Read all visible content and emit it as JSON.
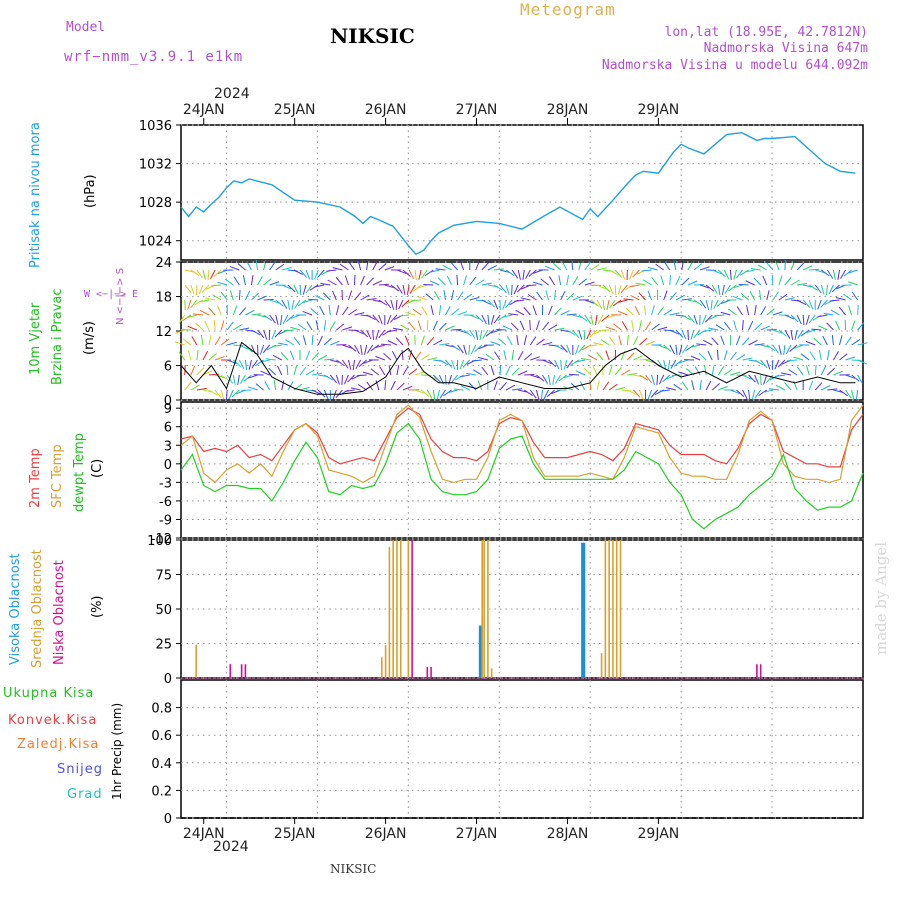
{
  "header": {
    "model_label": "Model",
    "model_name": "wrf−nmm_v3.9.1  e1km",
    "station": "NIKSIC",
    "meteogram": "Meteogram",
    "lonlat": "lon,lat (18.95E, 42.7812N)",
    "altitude": "Nadmorska Visina 647m",
    "model_altitude": "Nadmorska Visina u modelu 644.092m",
    "year_top": "2024",
    "year_bottom": "2024",
    "footer_station": "NIKSIC",
    "watermark": "made by Angel"
  },
  "colors": {
    "pressure": "#1fa0e0",
    "temp2m": "#e84040",
    "sfc": "#d8a030",
    "dewpt": "#20d020",
    "high_cloud": "#1a8fe0",
    "mid_cloud": "#d8a030",
    "low_cloud": "#d01090",
    "purple": "#b04fd0"
  },
  "panel_labels": {
    "pressure": [
      "Pritisak na nivou mora",
      "(hPa)"
    ],
    "wind": [
      "10m Vjetar",
      "Brzina i Pravac",
      "(m/s)"
    ],
    "compass_ns": "N <−|−> S",
    "compass_ew": "W  <−|−>  E",
    "temp": [
      "2m Temp",
      "SFC Temp",
      "dewpt Temp",
      "(C)"
    ],
    "cloud": [
      "Visoka Oblacnost",
      "Srednja Oblacnost",
      "Niska Oblacnost",
      "(%)"
    ],
    "precip_unit": "1hr Precip (mm)",
    "precip_legend": [
      "Ukupna Kisa",
      "Konvek.Kisa",
      "Zaledj.Kisa",
      "Snijeg",
      "Grad"
    ],
    "precip_legend_colors": [
      "#20d020",
      "#e84040",
      "#f08030",
      "#5050e0",
      "#20c0c0"
    ]
  },
  "chart_data": [
    {
      "type": "line",
      "title": "",
      "ylabel": "Pritisak na nivou mora (hPa)",
      "x_ticks": [
        "24JAN",
        "25JAN",
        "26JAN",
        "27JAN",
        "28JAN",
        "29JAN"
      ],
      "ylim": [
        1022,
        1036
      ],
      "yticks": [
        1024,
        1028,
        1032,
        1036
      ],
      "grid": true,
      "series": [
        {
          "name": "Pritisak na nivou mora",
          "x": [
            0,
            2,
            4,
            6,
            8,
            10,
            12,
            14,
            16,
            18,
            20,
            24,
            30,
            36,
            42,
            46,
            48,
            50,
            52,
            56,
            60,
            62,
            64,
            66,
            68,
            72,
            78,
            84,
            90,
            96,
            100,
            106,
            108,
            110,
            114,
            118,
            120,
            122,
            126,
            130,
            132,
            134,
            138,
            144,
            148,
            152,
            154,
            156,
            162,
            166,
            170,
            174,
            178
          ],
          "y": [
            1027.5,
            1026.5,
            1027.5,
            1027.0,
            1027.8,
            1028.5,
            1029.5,
            1030.2,
            1030.0,
            1030.4,
            1030.2,
            1029.8,
            1028.2,
            1028.0,
            1027.5,
            1026.5,
            1025.8,
            1026.5,
            1026.2,
            1025.5,
            1023.5,
            1022.6,
            1023.0,
            1024.0,
            1024.8,
            1025.6,
            1026.0,
            1025.8,
            1025.2,
            1026.6,
            1027.5,
            1026.2,
            1027.3,
            1026.5,
            1028.2,
            1030.0,
            1030.8,
            1031.2,
            1031.0,
            1033.2,
            1034.0,
            1033.6,
            1033.0,
            1035.0,
            1035.2,
            1034.4,
            1034.6,
            1034.6,
            1034.8,
            1033.4,
            1032.0,
            1031.2,
            1031.0
          ]
        }
      ]
    },
    {
      "type": "line",
      "title": "",
      "ylabel": "10m Vjetar Brzina i Pravac (m/s)",
      "x_ticks": [
        "24JAN",
        "25JAN",
        "26JAN",
        "27JAN",
        "28JAN",
        "29JAN"
      ],
      "ylim": [
        0,
        24
      ],
      "yticks": [
        0,
        6,
        12,
        18,
        24
      ],
      "grid": true,
      "series": [
        {
          "name": "10m Vjetar",
          "x": [
            0,
            4,
            8,
            12,
            16,
            20,
            24,
            30,
            36,
            42,
            48,
            54,
            58,
            60,
            64,
            68,
            72,
            78,
            84,
            90,
            96,
            102,
            108,
            112,
            116,
            120,
            126,
            132,
            138,
            144,
            150,
            156,
            162,
            168,
            174,
            178
          ],
          "y": [
            6,
            3,
            6,
            2,
            10,
            8,
            4,
            2,
            1,
            1,
            1.5,
            4,
            8,
            9,
            5,
            3,
            3,
            2,
            4,
            3,
            2,
            2,
            3,
            6,
            8,
            9,
            6,
            4,
            5,
            3,
            5,
            4,
            3,
            4,
            3,
            3
          ]
        }
      ]
    },
    {
      "type": "line",
      "title": "",
      "ylabel": "(C)",
      "x_ticks": [
        "24JAN",
        "25JAN",
        "26JAN",
        "27JAN",
        "28JAN",
        "29JAN"
      ],
      "ylim": [
        -12,
        10
      ],
      "yticks": [
        -12,
        -9,
        -6,
        -3,
        0,
        3,
        6,
        9
      ],
      "grid": true,
      "series": [
        {
          "name": "2m Temp",
          "x": [
            0,
            3,
            6,
            9,
            12,
            15,
            18,
            21,
            24,
            27,
            30,
            33,
            36,
            39,
            42,
            45,
            48,
            51,
            54,
            57,
            60,
            63,
            66,
            69,
            72,
            75,
            78,
            81,
            84,
            87,
            90,
            93,
            96,
            99,
            102,
            105,
            108,
            111,
            114,
            117,
            120,
            123,
            126,
            129,
            132,
            135,
            138,
            141,
            144,
            147,
            150,
            153,
            156,
            159,
            162,
            165,
            168,
            171,
            174,
            177,
            180
          ],
          "y": [
            4,
            4.5,
            2,
            2.5,
            2,
            3,
            1,
            1.5,
            0.5,
            3,
            5.5,
            6.5,
            5,
            1,
            0,
            0.5,
            1,
            0.5,
            4,
            7.5,
            9,
            8,
            4,
            2,
            1,
            1,
            0.5,
            2,
            6.5,
            7.5,
            7,
            3.5,
            1,
            1,
            1,
            1.5,
            2,
            1.5,
            0.5,
            2.5,
            6.5,
            6,
            5.5,
            3,
            1.5,
            1.5,
            1.5,
            0.5,
            0,
            2.5,
            6.5,
            8,
            7,
            2,
            1,
            0,
            0,
            -0.5,
            -0.5,
            5.5,
            8
          ]
        },
        {
          "name": "SFC Temp",
          "x": [
            0,
            3,
            6,
            9,
            12,
            15,
            18,
            21,
            24,
            27,
            30,
            33,
            36,
            39,
            42,
            45,
            48,
            51,
            54,
            57,
            60,
            63,
            66,
            69,
            72,
            75,
            78,
            81,
            84,
            87,
            90,
            93,
            96,
            99,
            102,
            105,
            108,
            111,
            114,
            117,
            120,
            123,
            126,
            129,
            132,
            135,
            138,
            141,
            144,
            147,
            150,
            153,
            156,
            159,
            162,
            165,
            168,
            171,
            174,
            177,
            180
          ],
          "y": [
            3,
            4.5,
            -1.5,
            -3,
            -1,
            0,
            -1.5,
            0,
            -2,
            2,
            5.5,
            6.5,
            4.5,
            -1,
            -1.5,
            -2,
            -3,
            -2,
            3,
            8,
            9.5,
            7.5,
            2,
            -2.5,
            -3,
            -2.5,
            -2.5,
            1,
            7,
            8,
            7,
            1,
            -2,
            -2,
            -2,
            -2,
            -1.5,
            -2,
            -2.5,
            1,
            6,
            5.5,
            5,
            1,
            -1.5,
            -2,
            -2,
            -2.5,
            -2.5,
            1.5,
            7,
            8.5,
            7,
            0,
            -2,
            -2.5,
            -2.5,
            -3,
            -2.5,
            7,
            9.5
          ]
        },
        {
          "name": "dewpt Temp",
          "x": [
            0,
            3,
            6,
            9,
            12,
            15,
            18,
            21,
            24,
            27,
            30,
            33,
            36,
            39,
            42,
            45,
            48,
            51,
            54,
            57,
            60,
            63,
            66,
            69,
            72,
            75,
            78,
            81,
            84,
            87,
            90,
            93,
            96,
            99,
            102,
            105,
            108,
            111,
            114,
            117,
            120,
            123,
            126,
            129,
            132,
            135,
            138,
            141,
            144,
            147,
            150,
            153,
            156,
            159,
            162,
            165,
            168,
            171,
            174,
            177,
            180
          ],
          "y": [
            -1,
            1.5,
            -3.5,
            -4.5,
            -3.5,
            -3.5,
            -4,
            -4,
            -6,
            -3,
            0.5,
            3.5,
            1,
            -4.5,
            -5,
            -3.5,
            -4,
            -3.5,
            0,
            5,
            6.5,
            4,
            -2.5,
            -4.5,
            -5,
            -5,
            -4.5,
            -2.5,
            2.5,
            4,
            4.5,
            0,
            -2.5,
            -2.5,
            -2.5,
            -2.5,
            -2.5,
            -2.5,
            -2.5,
            -1,
            2,
            1,
            0,
            -3,
            -5,
            -9,
            -10.5,
            -9,
            -8,
            -7,
            -5,
            -3.5,
            -2,
            1.5,
            -4,
            -6,
            -7.5,
            -7,
            -7,
            -6,
            -1.5
          ]
        }
      ]
    },
    {
      "type": "bar",
      "title": "",
      "ylabel": "(%)",
      "x_ticks": [
        "24JAN",
        "25JAN",
        "26JAN",
        "27JAN",
        "28JAN",
        "29JAN"
      ],
      "ylim": [
        0,
        100
      ],
      "yticks": [
        0,
        25,
        50,
        75,
        100
      ],
      "grid": true,
      "series": [
        {
          "name": "Visoka Oblacnost",
          "x": [
            79,
            106,
            106.3
          ],
          "values": [
            38,
            98,
            98
          ]
        },
        {
          "name": "Srednja Oblacnost",
          "x": [
            4,
            53,
            54,
            55,
            56,
            57,
            58,
            60,
            79.5,
            80,
            81,
            82,
            111,
            112,
            113,
            114,
            115,
            116
          ],
          "values": [
            24,
            15,
            24,
            95,
            100,
            100,
            100,
            100,
            100,
            100,
            100,
            7,
            18,
            100,
            100,
            100,
            100,
            100
          ]
        },
        {
          "name": "Niska Oblacnost",
          "x": [
            13,
            16,
            17,
            61,
            65,
            66,
            152,
            153
          ],
          "values": [
            10,
            10,
            10,
            100,
            8,
            8,
            10,
            10
          ]
        }
      ]
    },
    {
      "type": "bar",
      "title": "",
      "ylabel": "1hr Precip (mm)",
      "x_ticks": [
        "24JAN",
        "25JAN",
        "26JAN",
        "27JAN",
        "28JAN",
        "29JAN"
      ],
      "ylim": [
        0,
        1
      ],
      "yticks": [
        0,
        0.2,
        0.4,
        0.6,
        0.8
      ],
      "grid": true,
      "series": [
        {
          "name": "Ukupna Kisa",
          "x": [],
          "values": []
        },
        {
          "name": "Konvek.Kisa",
          "x": [],
          "values": []
        },
        {
          "name": "Zaledj.Kisa",
          "x": [],
          "values": []
        },
        {
          "name": "Snijeg",
          "x": [],
          "values": []
        },
        {
          "name": "Grad",
          "x": [],
          "values": []
        }
      ]
    }
  ]
}
